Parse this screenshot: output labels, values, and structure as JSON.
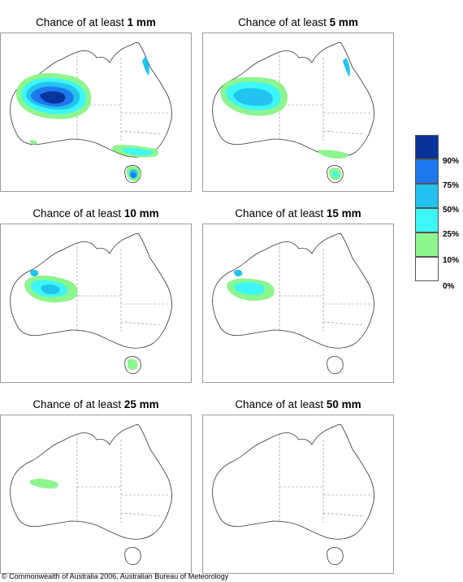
{
  "panels": [
    {
      "prefix": "Chance of at least ",
      "amount": "1 mm"
    },
    {
      "prefix": "Chance of at least ",
      "amount": "5 mm"
    },
    {
      "prefix": "Chance of at least ",
      "amount": "10 mm"
    },
    {
      "prefix": "Chance of at least ",
      "amount": "15 mm"
    },
    {
      "prefix": "Chance of at least ",
      "amount": "25 mm"
    },
    {
      "prefix": "Chance of at least ",
      "amount": "50 mm"
    }
  ],
  "legend": {
    "bands": [
      {
        "color": "#08339a"
      },
      {
        "color": "#1e78ef"
      },
      {
        "color": "#22c3ef"
      },
      {
        "color": "#3df7f7"
      },
      {
        "color": "#8df58d"
      },
      {
        "color": "#ffffff"
      }
    ],
    "labels": [
      "90%",
      "75%",
      "50%",
      "25%",
      "10%",
      "0%"
    ]
  },
  "copyright": "© Commonwealth of Australia 2006, Australian Bureau of Meteorology"
}
